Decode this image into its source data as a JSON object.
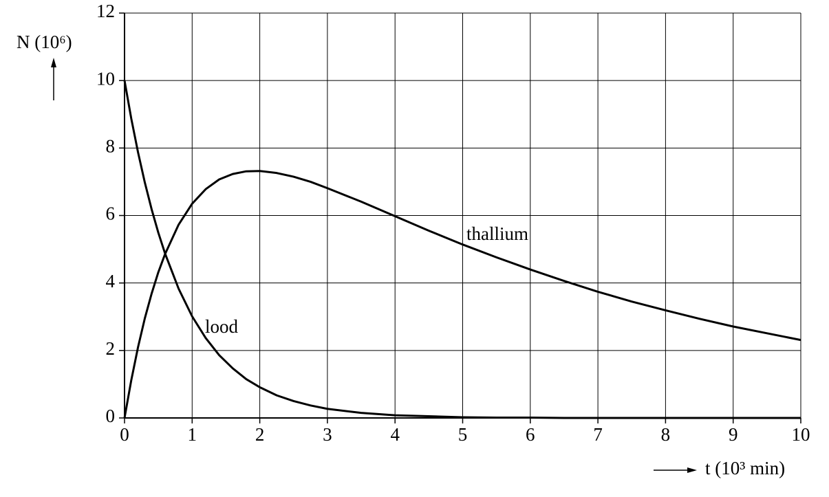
{
  "chart_data": {
    "type": "line",
    "ylabel": "N (10⁶)",
    "xlabel": "t (10³ min)",
    "annotations": [
      "lood",
      "thallium"
    ],
    "x": [
      0,
      0.1,
      0.2,
      0.3,
      0.4,
      0.5,
      0.6,
      0.8,
      1,
      1.2,
      1.4,
      1.6,
      1.8,
      2,
      2.25,
      2.5,
      2.75,
      3,
      3.5,
      4,
      4.5,
      5,
      5.5,
      6,
      6.5,
      7,
      7.5,
      8,
      8.5,
      9,
      9.5,
      10
    ],
    "series": [
      {
        "color": "#000000",
        "values": [
          10,
          8.87,
          7.87,
          6.98,
          6.19,
          5.49,
          4.87,
          3.83,
          3.01,
          2.37,
          1.86,
          1.47,
          1.15,
          0.91,
          0.67,
          0.5,
          0.37,
          0.27,
          0.15,
          0.08,
          0.05,
          0.02,
          0.01,
          0.01,
          0,
          0,
          0,
          0,
          0,
          0,
          0,
          0
        ]
      },
      {
        "color": "#000000",
        "values": [
          0,
          1.12,
          2.1,
          2.95,
          3.68,
          4.32,
          4.86,
          5.73,
          6.35,
          6.78,
          7.07,
          7.23,
          7.31,
          7.32,
          7.26,
          7.15,
          7.0,
          6.81,
          6.41,
          5.98,
          5.55,
          5.14,
          4.76,
          4.4,
          4.06,
          3.74,
          3.45,
          3.19,
          2.94,
          2.71,
          2.51,
          2.31
        ]
      }
    ],
    "xlim": [
      0,
      10
    ],
    "xticks": [
      0,
      1,
      2,
      3,
      4,
      5,
      6,
      7,
      8,
      9,
      10
    ],
    "ylim": [
      0,
      12
    ],
    "yticks": [
      0,
      2,
      4,
      6,
      8,
      10,
      12
    ],
    "grid": true
  }
}
